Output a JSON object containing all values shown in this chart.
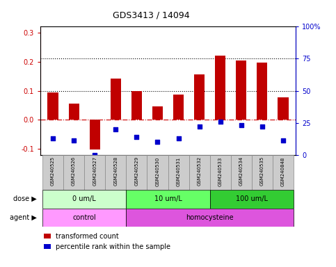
{
  "title": "GDS3413 / 14094",
  "samples": [
    "GSM240525",
    "GSM240526",
    "GSM240527",
    "GSM240528",
    "GSM240529",
    "GSM240530",
    "GSM240531",
    "GSM240532",
    "GSM240533",
    "GSM240534",
    "GSM240535",
    "GSM240848"
  ],
  "transformed_count": [
    0.095,
    0.057,
    -0.102,
    0.143,
    0.098,
    0.047,
    0.086,
    0.157,
    0.22,
    0.205,
    0.197,
    0.077
  ],
  "percentile_rank_right": [
    13,
    11,
    0,
    20,
    14,
    10,
    13,
    22,
    26,
    23,
    22,
    11
  ],
  "bar_color": "#c00000",
  "dot_color": "#0000cc",
  "ylim_left": [
    -0.12,
    0.32
  ],
  "ylim_right": [
    0,
    100
  ],
  "yticks_left": [
    -0.1,
    0.0,
    0.1,
    0.2,
    0.3
  ],
  "yticks_right": [
    0,
    25,
    50,
    75,
    100
  ],
  "ytick_right_labels": [
    "0",
    "25",
    "50",
    "75",
    "100%"
  ],
  "dose_groups": [
    {
      "label": "0 um/L",
      "start": 0,
      "end": 4,
      "color": "#ccffcc"
    },
    {
      "label": "10 um/L",
      "start": 4,
      "end": 8,
      "color": "#66ff66"
    },
    {
      "label": "100 um/L",
      "start": 8,
      "end": 12,
      "color": "#33cc33"
    }
  ],
  "agent_groups": [
    {
      "label": "control",
      "start": 0,
      "end": 4,
      "color": "#ff99ff"
    },
    {
      "label": "homocysteine",
      "start": 4,
      "end": 12,
      "color": "#dd55dd"
    }
  ],
  "dose_label": "dose",
  "agent_label": "agent",
  "legend_bar_label": "transformed count",
  "legend_dot_label": "percentile rank within the sample",
  "hline_zero_color": "#cc0000",
  "dotted_line_color": "#000000",
  "left_axis_color": "#cc0000",
  "right_axis_color": "#0000cc",
  "bar_width": 0.5,
  "sample_box_color": "#cccccc",
  "sample_box_edge": "#888888"
}
